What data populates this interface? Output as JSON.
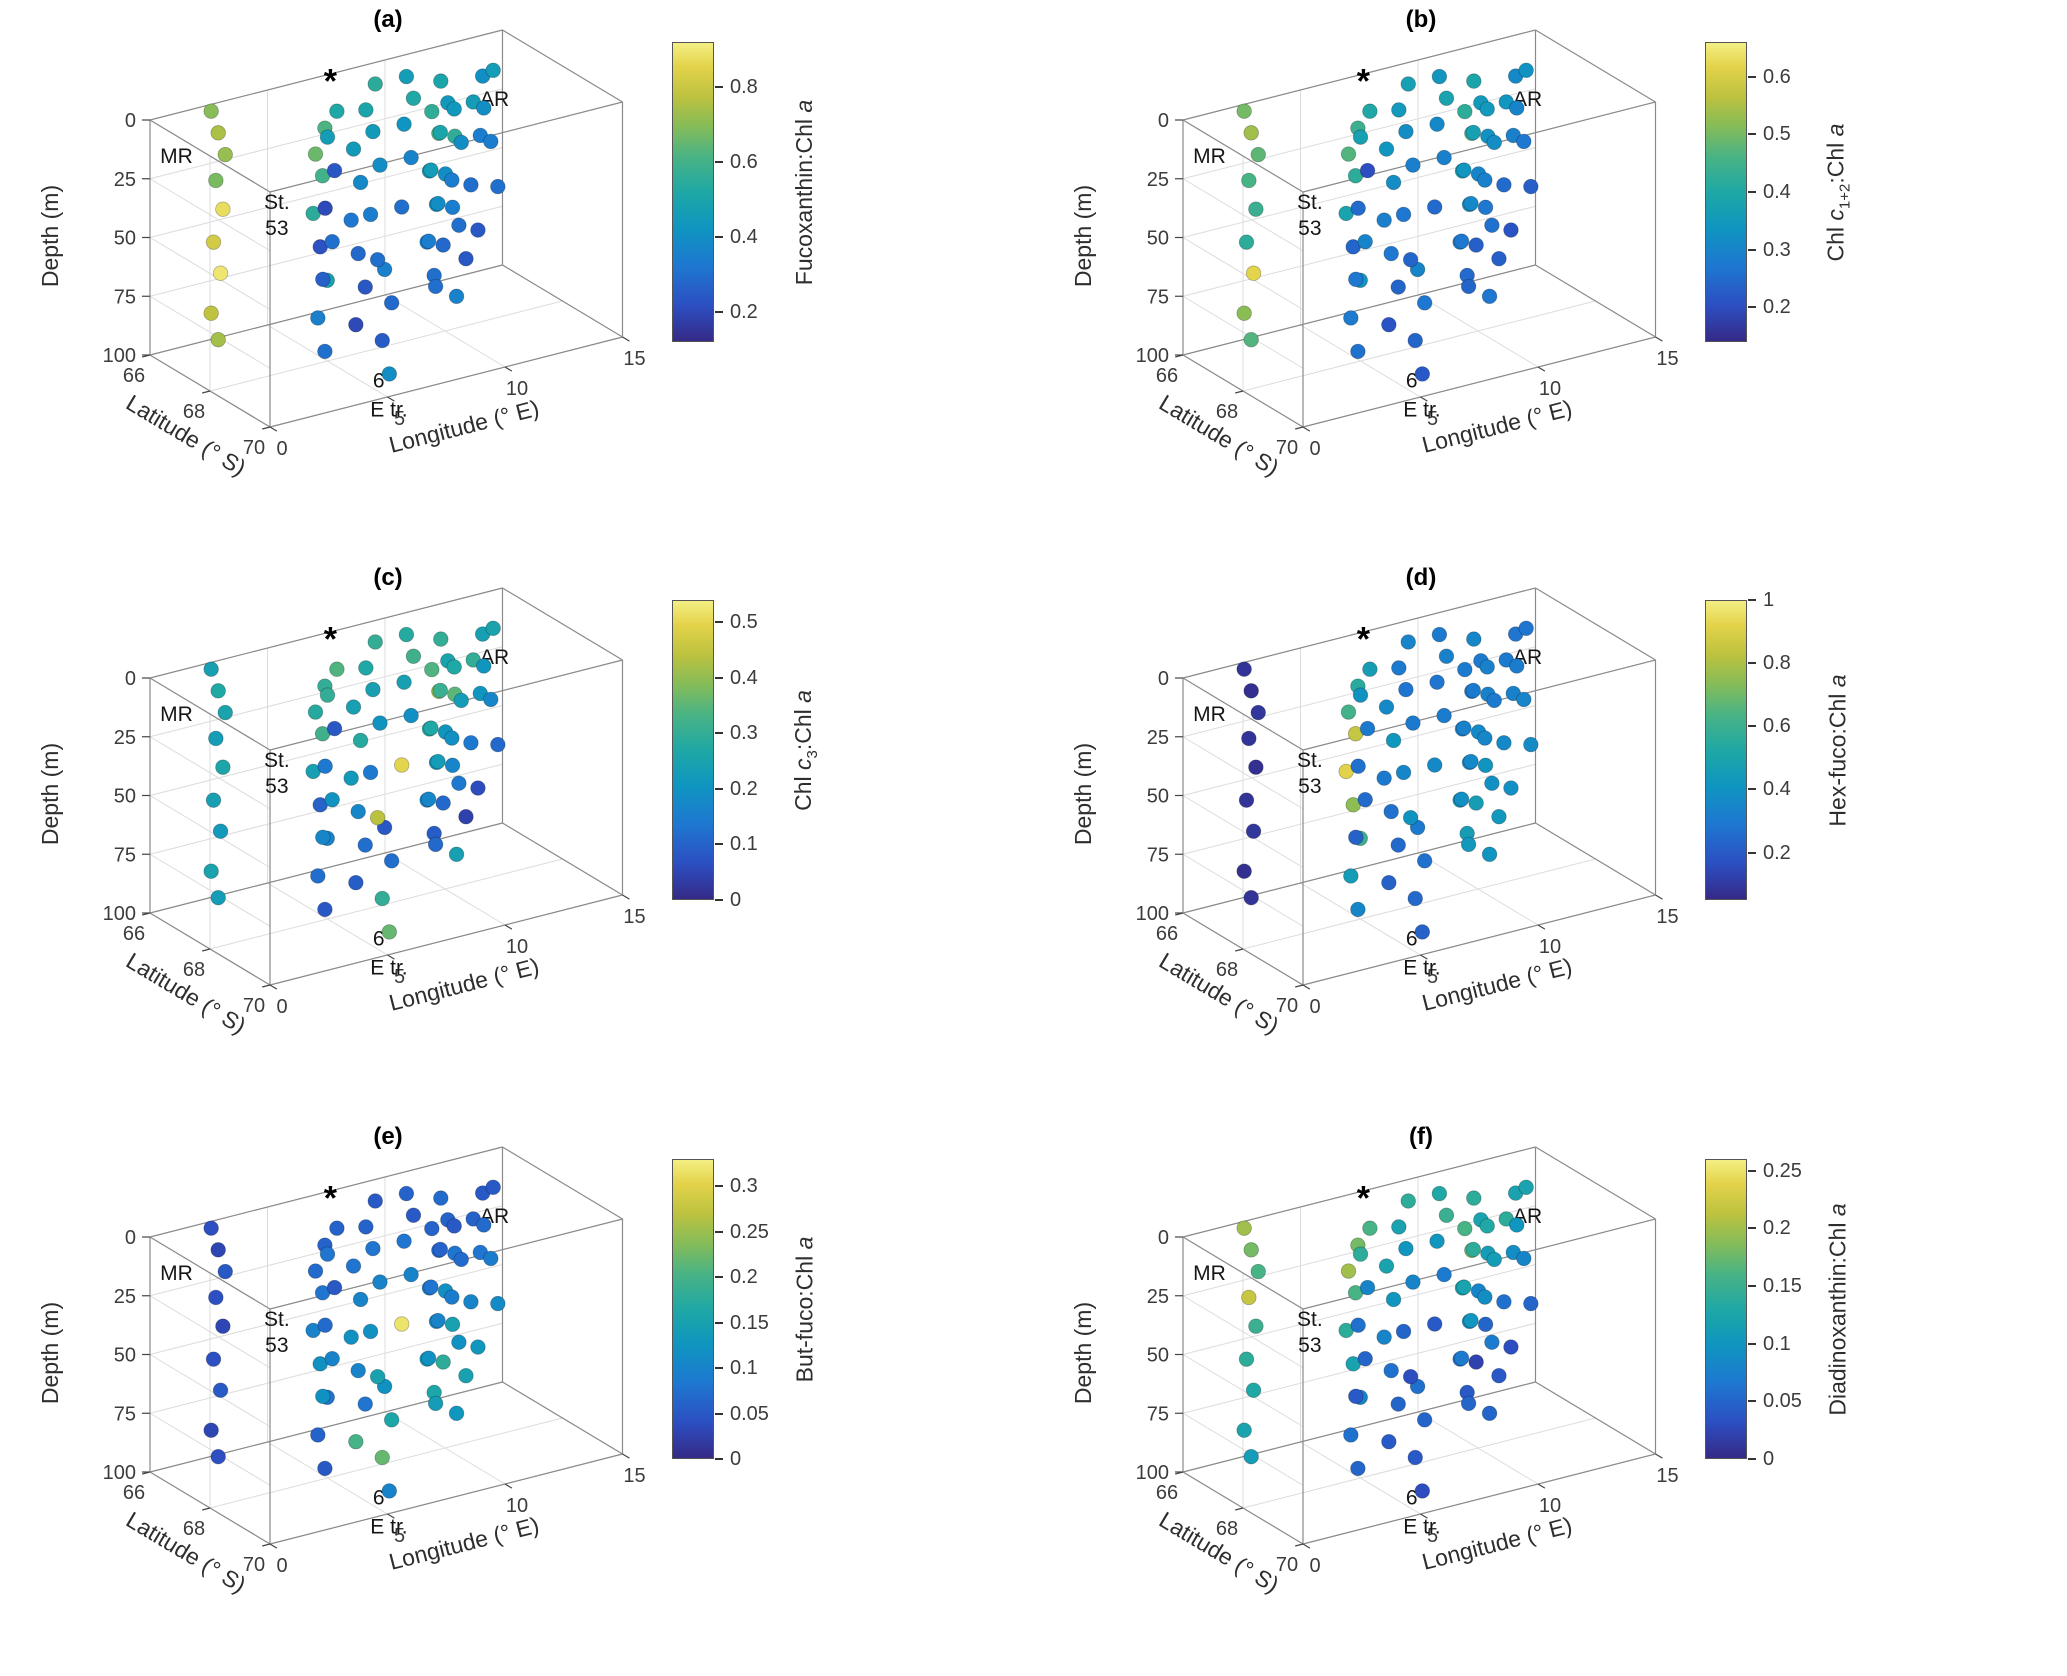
{
  "colormap": [
    [
      0,
      "#352a87"
    ],
    [
      0.12,
      "#2c4fc2"
    ],
    [
      0.25,
      "#1e77d0"
    ],
    [
      0.38,
      "#0f95c0"
    ],
    [
      0.5,
      "#1fa8a5"
    ],
    [
      0.62,
      "#4ab384"
    ],
    [
      0.72,
      "#85bc58"
    ],
    [
      0.82,
      "#bdc23f"
    ],
    [
      0.92,
      "#e3d34a"
    ],
    [
      1,
      "#f3ef83"
    ]
  ],
  "axes": {
    "depth": {
      "label": "Depth (m)",
      "ticks": [
        0,
        25,
        50,
        75,
        100
      ],
      "range": [
        0,
        100
      ]
    },
    "lat": {
      "label": "Latitude (° S)",
      "ticks": [
        66,
        68,
        70
      ],
      "range": [
        66,
        70
      ]
    },
    "lon": {
      "label": "Longitude (° E)",
      "ticks": [
        0,
        5,
        10,
        15
      ],
      "range": [
        0,
        15
      ]
    },
    "annotations": [
      {
        "text": "MR",
        "lon": 1.0,
        "lat": 66.1,
        "depth": 20
      },
      {
        "text": "AR",
        "lon": 13.9,
        "lat": 66.6,
        "depth": 25
      },
      {
        "text": "St.",
        "lon": 3.1,
        "lat": 67.8,
        "depth": 32
      },
      {
        "text": "53",
        "lon": 3.1,
        "lat": 67.8,
        "depth": 43
      },
      {
        "text": "6°",
        "lon": 5.7,
        "lat": 69.3,
        "depth": 103
      },
      {
        "text": "E tr.",
        "lon": 5.7,
        "lat": 69.5,
        "depth": 114
      },
      {
        "text": "*",
        "lon": 6.4,
        "lat": 67.0,
        "depth": -3,
        "star": true
      }
    ]
  },
  "chart_data": {
    "type": "scatter",
    "note": "3D scatter (MATLAB-style view), 6 panels sharing station positions; color = pigment ratio",
    "stations": "see stations key",
    "panels": "see panels key"
  },
  "stations": [
    {
      "lat": 66.2,
      "lon": 2.8,
      "depths": [
        2,
        12,
        22,
        32,
        45,
        58,
        72,
        88,
        100
      ]
    },
    {
      "lat": 67.6,
      "lon": 5.2,
      "depths": [
        5,
        15,
        25,
        40,
        55,
        70,
        85,
        100
      ]
    },
    {
      "lat": 69.0,
      "lon": 6.0,
      "depths": [
        55,
        70,
        85,
        100
      ]
    },
    {
      "lat": 68.3,
      "lon": 6.0,
      "depths": [
        10,
        25,
        40,
        55,
        70,
        85
      ]
    },
    {
      "lat": 67.0,
      "lon": 6.3,
      "depths": [
        5,
        15,
        30,
        45,
        60,
        75
      ]
    },
    {
      "lat": 66.5,
      "lon": 9.0,
      "depths": [
        5,
        15,
        25,
        40,
        60,
        80
      ]
    },
    {
      "lat": 66.4,
      "lon": 10.5,
      "depths": [
        5,
        15,
        25,
        40,
        60
      ]
    },
    {
      "lat": 66.8,
      "lon": 11.5,
      "depths": [
        5,
        15,
        30,
        45,
        60,
        75
      ]
    },
    {
      "lat": 67.2,
      "lon": 12.5,
      "depths": [
        5,
        15,
        30,
        50,
        70
      ]
    },
    {
      "lat": 67.5,
      "lon": 10.0,
      "depths": [
        10,
        20,
        35,
        50,
        65,
        80
      ]
    },
    {
      "lat": 67.8,
      "lon": 11.0,
      "depths": [
        10,
        25,
        40,
        60,
        75,
        90
      ]
    },
    {
      "lat": 68.0,
      "lon": 9.5,
      "depths": [
        15,
        30,
        45,
        60,
        80
      ]
    },
    {
      "lat": 66.9,
      "lon": 13.2,
      "depths": [
        5,
        20,
        35,
        55
      ]
    }
  ],
  "panels": [
    {
      "title": "(a)",
      "clim": [
        0.12,
        0.92
      ],
      "cticks": [
        0.2,
        0.4,
        0.6,
        0.8
      ],
      "cbar_label_parts": [
        {
          "t": "Fucoxanthin:Chl "
        },
        {
          "t": "a",
          "i": true
        }
      ],
      "values": [
        [
          0.7,
          0.75,
          0.72,
          0.68,
          0.88,
          0.82,
          0.9,
          0.78,
          0.74
        ],
        [
          0.62,
          0.66,
          0.6,
          0.55,
          0.22,
          0.48,
          0.35,
          0.3
        ],
        [
          0.35,
          0.28,
          0.25,
          0.4
        ],
        [
          0.45,
          0.38,
          0.32,
          0.28,
          0.24,
          0.2
        ],
        [
          0.52,
          0.46,
          0.24,
          0.2,
          0.3,
          0.26
        ],
        [
          0.55,
          0.5,
          0.45,
          0.4,
          0.34,
          0.3
        ],
        [
          0.46,
          0.52,
          0.42,
          0.36,
          0.3
        ],
        [
          0.5,
          0.44,
          0.56,
          0.4,
          0.34,
          0.28
        ],
        [
          0.4,
          0.46,
          0.34,
          0.3,
          0.24
        ],
        [
          0.56,
          0.62,
          0.46,
          0.4,
          0.34,
          0.3
        ],
        [
          0.44,
          0.4,
          0.34,
          0.3,
          0.24,
          0.36
        ],
        [
          0.5,
          0.46,
          0.4,
          0.34,
          0.3
        ],
        [
          0.46,
          0.4,
          0.34,
          0.3
        ]
      ]
    },
    {
      "title": "(b)",
      "clim": [
        0.14,
        0.66
      ],
      "cticks": [
        0.2,
        0.3,
        0.4,
        0.5,
        0.6
      ],
      "cbar_label_parts": [
        {
          "t": "Chl "
        },
        {
          "t": "c",
          "i": true
        },
        {
          "t": "1+2",
          "sub": true
        },
        {
          "t": ":Chl "
        },
        {
          "t": "a",
          "i": true
        }
      ],
      "values": [
        [
          0.5,
          0.54,
          0.48,
          0.46,
          0.44,
          0.42,
          0.62,
          0.52,
          0.47
        ],
        [
          0.44,
          0.47,
          0.42,
          0.38,
          0.24,
          0.34,
          0.28,
          0.26
        ],
        [
          0.3,
          0.27,
          0.24,
          0.22
        ],
        [
          0.34,
          0.32,
          0.29,
          0.27,
          0.24,
          0.21
        ],
        [
          0.4,
          0.37,
          0.2,
          0.25,
          0.3,
          0.27
        ],
        [
          0.37,
          0.35,
          0.32,
          0.29,
          0.27,
          0.24
        ],
        [
          0.34,
          0.38,
          0.31,
          0.29,
          0.25
        ],
        [
          0.39,
          0.35,
          0.33,
          0.3,
          0.27,
          0.23
        ],
        [
          0.31,
          0.34,
          0.29,
          0.25,
          0.21
        ],
        [
          0.42,
          0.45,
          0.37,
          0.33,
          0.29,
          0.25
        ],
        [
          0.35,
          0.32,
          0.29,
          0.26,
          0.23,
          0.27
        ],
        [
          0.37,
          0.34,
          0.31,
          0.27,
          0.24
        ],
        [
          0.33,
          0.3,
          0.27,
          0.23
        ]
      ]
    },
    {
      "title": "(c)",
      "clim": [
        0,
        0.54
      ],
      "cticks": [
        0,
        0.1,
        0.2,
        0.3,
        0.4,
        0.5
      ],
      "cbar_label_parts": [
        {
          "t": "Chl "
        },
        {
          "t": "c",
          "i": true
        },
        {
          "t": "3",
          "sub": true
        },
        {
          "t": ":Chl "
        },
        {
          "t": "a",
          "i": true
        }
      ],
      "values": [
        [
          0.24,
          0.27,
          0.25,
          0.23,
          0.26,
          0.24,
          0.22,
          0.25,
          0.23
        ],
        [
          0.3,
          0.28,
          0.32,
          0.24,
          0.1,
          0.16,
          0.12,
          0.08
        ],
        [
          0.08,
          0.12,
          0.3,
          0.36
        ],
        [
          0.24,
          0.28,
          0.22,
          0.17,
          0.12,
          0.09
        ],
        [
          0.34,
          0.3,
          0.08,
          0.14,
          0.2,
          0.17
        ],
        [
          0.3,
          0.27,
          0.24,
          0.2,
          0.14,
          0.44
        ],
        [
          0.28,
          0.32,
          0.24,
          0.19,
          0.5
        ],
        [
          0.3,
          0.25,
          0.35,
          0.21,
          0.17,
          0.11
        ],
        [
          0.24,
          0.3,
          0.21,
          0.14,
          0.06
        ],
        [
          0.34,
          0.4,
          0.28,
          0.21,
          0.17,
          0.09
        ],
        [
          0.27,
          0.23,
          0.19,
          0.14,
          0.04,
          0.24
        ],
        [
          0.31,
          0.27,
          0.23,
          0.17,
          0.11
        ],
        [
          0.25,
          0.21,
          0.17,
          0.11
        ]
      ]
    },
    {
      "title": "(d)",
      "clim": [
        0.05,
        1.0
      ],
      "cticks": [
        0.2,
        0.4,
        0.6,
        0.8,
        1
      ],
      "cbar_label_parts": [
        {
          "t": "Hex-fuco:Chl "
        },
        {
          "t": "a",
          "i": true
        }
      ],
      "values": [
        [
          0.08,
          0.07,
          0.09,
          0.08,
          0.07,
          0.08,
          0.09,
          0.07,
          0.08
        ],
        [
          0.55,
          0.62,
          0.85,
          0.92,
          0.75,
          0.6,
          0.45,
          0.35
        ],
        [
          0.3,
          0.27,
          0.24,
          0.22
        ],
        [
          0.36,
          0.42,
          0.3,
          0.27,
          0.24,
          0.22
        ],
        [
          0.46,
          0.4,
          0.3,
          0.27,
          0.25,
          0.22
        ],
        [
          0.34,
          0.3,
          0.28,
          0.3,
          0.35,
          0.4
        ],
        [
          0.3,
          0.33,
          0.28,
          0.31,
          0.36
        ],
        [
          0.35,
          0.3,
          0.33,
          0.36,
          0.41,
          0.46
        ],
        [
          0.28,
          0.31,
          0.33,
          0.36,
          0.39
        ],
        [
          0.31,
          0.28,
          0.33,
          0.36,
          0.41,
          0.46
        ],
        [
          0.33,
          0.3,
          0.35,
          0.39,
          0.43,
          0.41
        ],
        [
          0.3,
          0.33,
          0.36,
          0.39,
          0.43
        ],
        [
          0.28,
          0.31,
          0.34,
          0.37
        ]
      ]
    },
    {
      "title": "(e)",
      "clim": [
        0,
        0.33
      ],
      "cticks": [
        0,
        0.05,
        0.1,
        0.15,
        0.2,
        0.25,
        0.3
      ],
      "cbar_label_parts": [
        {
          "t": "But-fuco:Chl "
        },
        {
          "t": "a",
          "i": true
        }
      ],
      "values": [
        [
          0.04,
          0.03,
          0.05,
          0.04,
          0.03,
          0.04,
          0.05,
          0.03,
          0.04
        ],
        [
          0.06,
          0.07,
          0.08,
          0.1,
          0.12,
          0.08,
          0.06,
          0.05
        ],
        [
          0.12,
          0.16,
          0.22,
          0.1
        ],
        [
          0.08,
          0.1,
          0.12,
          0.1,
          0.08,
          0.2
        ],
        [
          0.06,
          0.08,
          0.05,
          0.07,
          0.1,
          0.12
        ],
        [
          0.05,
          0.06,
          0.08,
          0.1,
          0.12,
          0.15
        ],
        [
          0.06,
          0.05,
          0.08,
          0.1,
          0.32
        ],
        [
          0.07,
          0.06,
          0.08,
          0.12,
          0.15,
          0.18
        ],
        [
          0.05,
          0.06,
          0.08,
          0.1,
          0.13
        ],
        [
          0.06,
          0.07,
          0.09,
          0.11,
          0.14,
          0.16
        ],
        [
          0.05,
          0.07,
          0.09,
          0.12,
          0.15,
          0.13
        ],
        [
          0.06,
          0.08,
          0.1,
          0.12,
          0.14
        ],
        [
          0.05,
          0.07,
          0.09,
          0.11
        ]
      ]
    },
    {
      "title": "(f)",
      "clim": [
        0,
        0.26
      ],
      "cticks": [
        0,
        0.05,
        0.1,
        0.15,
        0.2,
        0.25
      ],
      "cbar_label_parts": [
        {
          "t": "Diadinoxanthin:Chl "
        },
        {
          "t": "a",
          "i": true
        }
      ],
      "values": [
        [
          0.2,
          0.18,
          0.16,
          0.22,
          0.15,
          0.14,
          0.13,
          0.12,
          0.11
        ],
        [
          0.18,
          0.2,
          0.16,
          0.14,
          0.12,
          0.08,
          0.06,
          0.05
        ],
        [
          0.06,
          0.05,
          0.04,
          0.03
        ],
        [
          0.12,
          0.1,
          0.08,
          0.06,
          0.05,
          0.04
        ],
        [
          0.16,
          0.14,
          0.08,
          0.06,
          0.05,
          0.04
        ],
        [
          0.14,
          0.12,
          0.1,
          0.08,
          0.05,
          0.03
        ],
        [
          0.13,
          0.15,
          0.1,
          0.07,
          0.04
        ],
        [
          0.14,
          0.12,
          0.11,
          0.08,
          0.05,
          0.02
        ],
        [
          0.12,
          0.14,
          0.09,
          0.06,
          0.03
        ],
        [
          0.16,
          0.18,
          0.12,
          0.09,
          0.06,
          0.04
        ],
        [
          0.13,
          0.11,
          0.09,
          0.07,
          0.04,
          0.05
        ],
        [
          0.14,
          0.12,
          0.1,
          0.07,
          0.05
        ],
        [
          0.12,
          0.1,
          0.08,
          0.05
        ]
      ]
    }
  ]
}
